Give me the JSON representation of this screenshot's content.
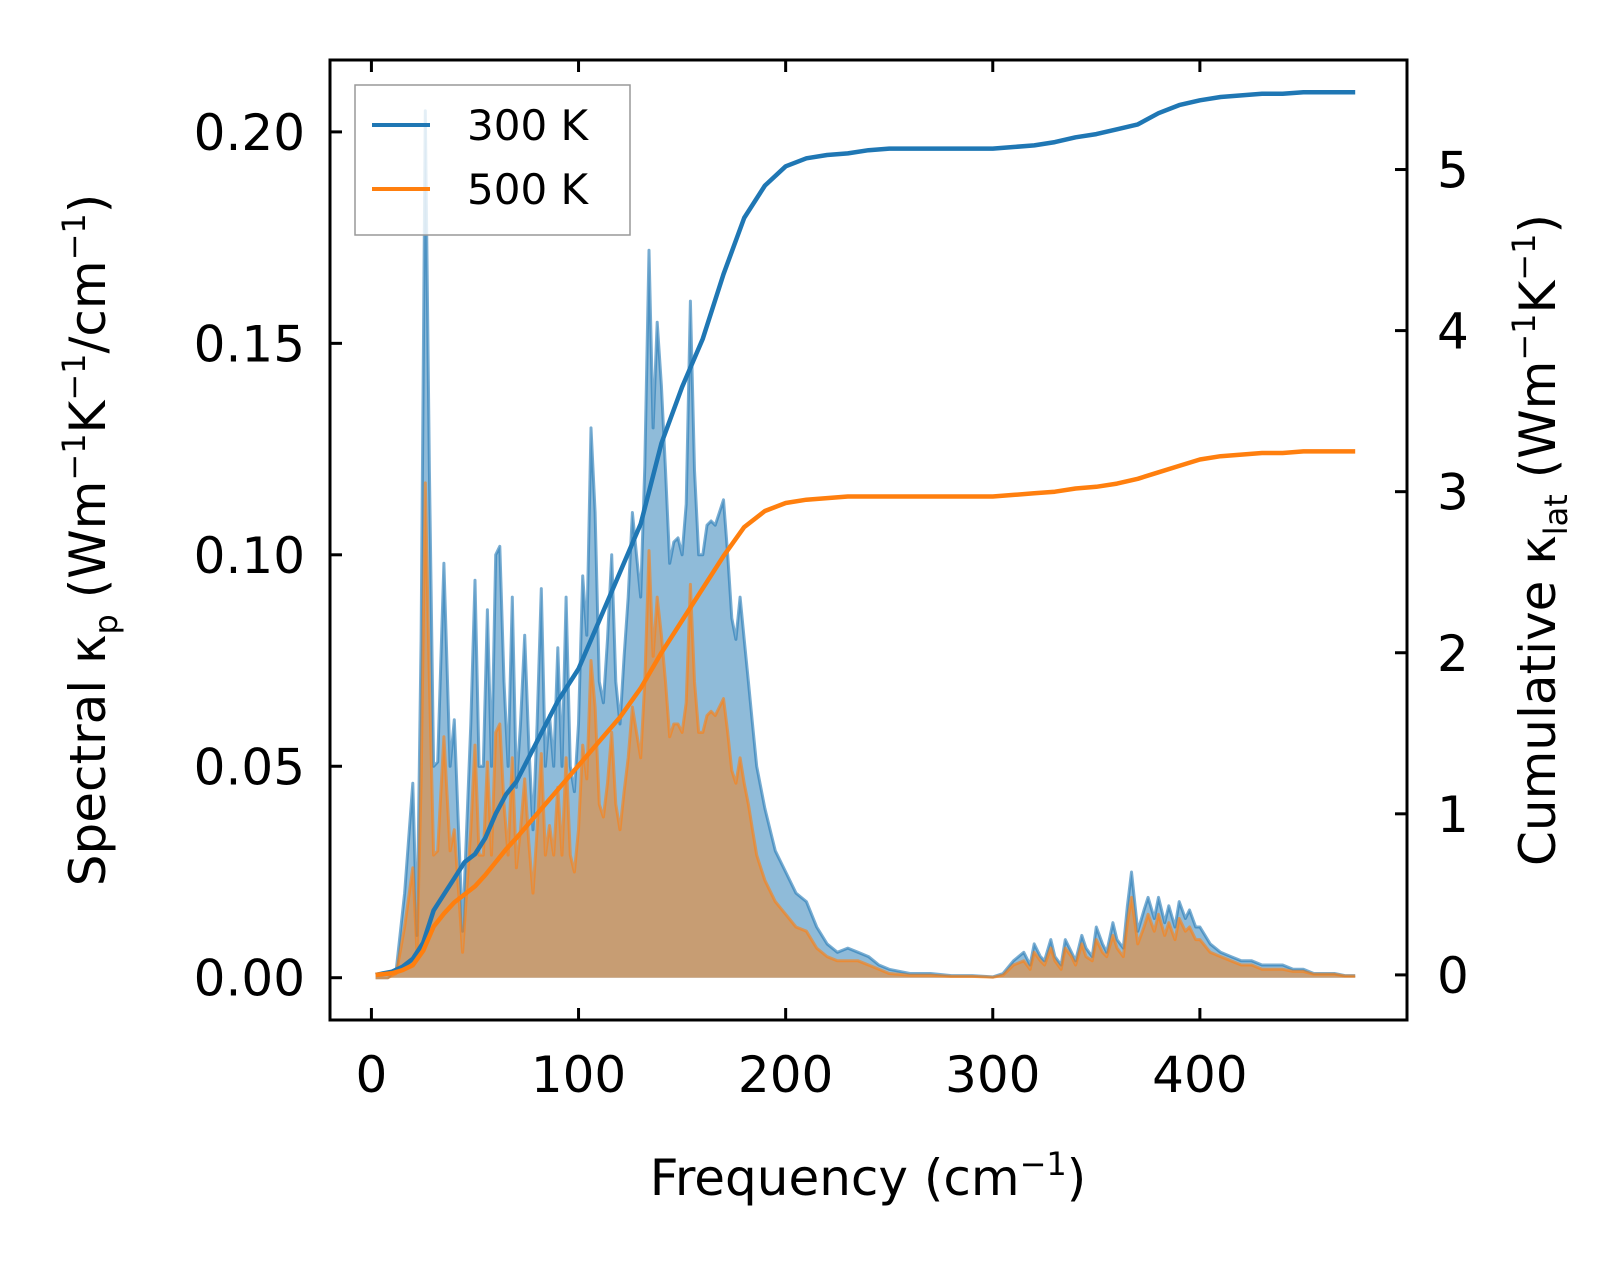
{
  "chart_data": {
    "type": "area",
    "x_label": {
      "text": "Frequency (cm",
      "sup": "−1",
      "close": ")"
    },
    "y_left_label": {
      "text": "Spectral κ",
      "sub": "p",
      "rest": " (Wm",
      "sup1": "−1",
      "mid": "K",
      "sup2": "−1",
      "mid2": "/cm",
      "sup3": "−1",
      "close": ")"
    },
    "y_right_label": {
      "text": "Cumulative κ",
      "sub": "lat",
      "rest": " (Wm",
      "sup1": "−1",
      "mid": "K",
      "sup2": "−1",
      "close": ")"
    },
    "x_range": [
      -20,
      500
    ],
    "y_left_range": [
      -0.01,
      0.217
    ],
    "y_right_range": [
      -0.28,
      5.68
    ],
    "x_ticks": [
      0,
      100,
      200,
      300,
      400
    ],
    "x_tick_labels": [
      "0",
      "100",
      "200",
      "300",
      "400"
    ],
    "y_left_ticks": [
      0.0,
      0.05,
      0.1,
      0.15,
      0.2
    ],
    "y_left_tick_labels": [
      "0.00",
      "0.05",
      "0.10",
      "0.15",
      "0.20"
    ],
    "y_right_ticks": [
      0,
      1,
      2,
      3,
      4,
      5
    ],
    "y_right_tick_labels": [
      "0",
      "1",
      "2",
      "3",
      "4",
      "5"
    ],
    "legend_position": "top-left",
    "legend": [
      {
        "label": "300 K",
        "color": "#1f77b4"
      },
      {
        "label": "500 K",
        "color": "#ff7f0e"
      }
    ],
    "series": [
      {
        "name": "300 K",
        "color": "#1f77b4",
        "fill_color": "#1f77b4",
        "spectral": {
          "x": [
            2,
            8,
            12,
            16,
            20,
            22,
            24,
            26,
            28,
            30,
            32,
            35,
            38,
            40,
            42,
            44,
            48,
            50,
            52,
            54,
            56,
            58,
            60,
            62,
            64,
            66,
            68,
            70,
            72,
            74,
            76,
            78,
            80,
            82,
            84,
            86,
            88,
            90,
            92,
            94,
            96,
            98,
            100,
            102,
            104,
            106,
            108,
            110,
            112,
            114,
            116,
            118,
            120,
            122,
            124,
            126,
            128,
            130,
            132,
            134,
            136,
            138,
            140,
            142,
            144,
            146,
            148,
            150,
            152,
            154,
            156,
            158,
            160,
            162,
            164,
            166,
            168,
            170,
            172,
            174,
            176,
            178,
            180,
            182,
            184,
            186,
            188,
            190,
            195,
            200,
            205,
            210,
            215,
            220,
            225,
            230,
            235,
            240,
            245,
            250,
            260,
            270,
            280,
            290,
            300,
            305,
            310,
            315,
            318,
            320,
            323,
            325,
            328,
            330,
            333,
            335,
            338,
            340,
            343,
            345,
            348,
            350,
            353,
            355,
            358,
            360,
            363,
            365,
            367,
            370,
            373,
            375,
            378,
            380,
            383,
            385,
            388,
            390,
            393,
            395,
            398,
            400,
            405,
            410,
            415,
            420,
            425,
            430,
            435,
            440,
            445,
            450,
            455,
            460,
            465,
            470,
            475
          ],
          "y": [
            0.0,
            0.0,
            0.002,
            0.02,
            0.046,
            0.01,
            0.08,
            0.205,
            0.12,
            0.05,
            0.051,
            0.098,
            0.05,
            0.061,
            0.036,
            0.011,
            0.06,
            0.094,
            0.05,
            0.05,
            0.087,
            0.05,
            0.1,
            0.102,
            0.07,
            0.05,
            0.09,
            0.045,
            0.06,
            0.081,
            0.055,
            0.035,
            0.06,
            0.092,
            0.05,
            0.062,
            0.05,
            0.078,
            0.05,
            0.09,
            0.05,
            0.044,
            0.06,
            0.095,
            0.081,
            0.13,
            0.11,
            0.07,
            0.065,
            0.08,
            0.1,
            0.07,
            0.06,
            0.076,
            0.09,
            0.11,
            0.1,
            0.09,
            0.121,
            0.172,
            0.13,
            0.155,
            0.14,
            0.12,
            0.098,
            0.103,
            0.104,
            0.1,
            0.112,
            0.16,
            0.12,
            0.1,
            0.1,
            0.107,
            0.108,
            0.107,
            0.11,
            0.113,
            0.1,
            0.085,
            0.08,
            0.09,
            0.08,
            0.07,
            0.06,
            0.05,
            0.045,
            0.04,
            0.03,
            0.025,
            0.02,
            0.018,
            0.012,
            0.008,
            0.006,
            0.007,
            0.006,
            0.005,
            0.003,
            0.002,
            0.001,
            0.001,
            0.0005,
            0.0005,
            0.0002,
            0.001,
            0.004,
            0.006,
            0.003,
            0.008,
            0.005,
            0.004,
            0.009,
            0.005,
            0.003,
            0.009,
            0.006,
            0.004,
            0.01,
            0.007,
            0.005,
            0.012,
            0.008,
            0.006,
            0.013,
            0.009,
            0.007,
            0.017,
            0.025,
            0.011,
            0.016,
            0.019,
            0.014,
            0.019,
            0.013,
            0.017,
            0.012,
            0.018,
            0.014,
            0.016,
            0.012,
            0.012,
            0.008,
            0.006,
            0.005,
            0.004,
            0.004,
            0.003,
            0.003,
            0.003,
            0.002,
            0.002,
            0.001,
            0.001,
            0.001,
            0.0005,
            0.0005
          ]
        },
        "cumulative": {
          "x": [
            2,
            10,
            15,
            20,
            25,
            30,
            35,
            40,
            45,
            50,
            55,
            60,
            65,
            70,
            80,
            90,
            100,
            110,
            120,
            130,
            140,
            150,
            160,
            170,
            180,
            190,
            200,
            210,
            220,
            230,
            240,
            250,
            300,
            310,
            320,
            330,
            340,
            350,
            360,
            370,
            380,
            390,
            400,
            410,
            420,
            430,
            440,
            450,
            460,
            475
          ],
          "y": [
            0.0,
            0.02,
            0.05,
            0.1,
            0.2,
            0.4,
            0.5,
            0.6,
            0.7,
            0.75,
            0.85,
            1.0,
            1.12,
            1.2,
            1.45,
            1.7,
            1.9,
            2.2,
            2.5,
            2.8,
            3.3,
            3.65,
            3.95,
            4.35,
            4.7,
            4.9,
            5.02,
            5.07,
            5.09,
            5.1,
            5.12,
            5.13,
            5.13,
            5.14,
            5.15,
            5.17,
            5.2,
            5.22,
            5.25,
            5.28,
            5.35,
            5.4,
            5.43,
            5.45,
            5.46,
            5.47,
            5.47,
            5.48,
            5.48,
            5.48
          ]
        }
      },
      {
        "name": "500 K",
        "color": "#ff7f0e",
        "fill_color": "#ff7f0e",
        "spectral": {
          "x": [
            2,
            8,
            12,
            16,
            20,
            22,
            24,
            26,
            28,
            30,
            32,
            35,
            38,
            40,
            42,
            44,
            48,
            50,
            52,
            54,
            56,
            58,
            60,
            62,
            64,
            66,
            68,
            70,
            72,
            74,
            76,
            78,
            80,
            82,
            84,
            86,
            88,
            90,
            92,
            94,
            96,
            98,
            100,
            102,
            104,
            106,
            108,
            110,
            112,
            114,
            116,
            118,
            120,
            122,
            124,
            126,
            128,
            130,
            132,
            134,
            136,
            138,
            140,
            142,
            144,
            146,
            148,
            150,
            152,
            154,
            156,
            158,
            160,
            162,
            164,
            166,
            168,
            170,
            172,
            174,
            176,
            178,
            180,
            182,
            184,
            186,
            188,
            190,
            195,
            200,
            205,
            210,
            215,
            220,
            225,
            230,
            235,
            240,
            245,
            250,
            260,
            270,
            280,
            290,
            300,
            305,
            310,
            315,
            318,
            320,
            323,
            325,
            328,
            330,
            333,
            335,
            338,
            340,
            343,
            345,
            348,
            350,
            353,
            355,
            358,
            360,
            363,
            365,
            367,
            370,
            373,
            375,
            378,
            380,
            383,
            385,
            388,
            390,
            393,
            395,
            398,
            400,
            405,
            410,
            415,
            420,
            425,
            430,
            435,
            440,
            445,
            450,
            455,
            460,
            465,
            470,
            475
          ],
          "y": [
            0.0,
            0.0,
            0.001,
            0.012,
            0.026,
            0.006,
            0.046,
            0.117,
            0.07,
            0.029,
            0.03,
            0.057,
            0.03,
            0.035,
            0.021,
            0.006,
            0.035,
            0.055,
            0.029,
            0.029,
            0.051,
            0.029,
            0.058,
            0.06,
            0.041,
            0.029,
            0.052,
            0.026,
            0.035,
            0.047,
            0.032,
            0.02,
            0.035,
            0.053,
            0.029,
            0.036,
            0.029,
            0.045,
            0.029,
            0.052,
            0.029,
            0.025,
            0.035,
            0.055,
            0.047,
            0.075,
            0.064,
            0.041,
            0.038,
            0.046,
            0.058,
            0.041,
            0.035,
            0.044,
            0.052,
            0.064,
            0.058,
            0.052,
            0.07,
            0.101,
            0.076,
            0.09,
            0.081,
            0.07,
            0.057,
            0.06,
            0.06,
            0.058,
            0.065,
            0.093,
            0.07,
            0.058,
            0.058,
            0.062,
            0.063,
            0.062,
            0.064,
            0.066,
            0.058,
            0.049,
            0.046,
            0.052,
            0.046,
            0.041,
            0.035,
            0.029,
            0.026,
            0.023,
            0.018,
            0.015,
            0.012,
            0.011,
            0.007,
            0.005,
            0.004,
            0.004,
            0.004,
            0.003,
            0.002,
            0.001,
            0.0006,
            0.0006,
            0.0003,
            0.0003,
            0.0001,
            0.0006,
            0.003,
            0.004,
            0.002,
            0.006,
            0.004,
            0.003,
            0.007,
            0.004,
            0.002,
            0.007,
            0.005,
            0.003,
            0.008,
            0.005,
            0.004,
            0.009,
            0.006,
            0.005,
            0.01,
            0.007,
            0.005,
            0.013,
            0.019,
            0.008,
            0.012,
            0.015,
            0.011,
            0.015,
            0.01,
            0.013,
            0.009,
            0.014,
            0.011,
            0.012,
            0.009,
            0.009,
            0.006,
            0.005,
            0.004,
            0.003,
            0.003,
            0.002,
            0.002,
            0.002,
            0.0015,
            0.0015,
            0.0008,
            0.0008,
            0.0008,
            0.0004,
            0.0004
          ]
        },
        "cumulative": {
          "x": [
            2,
            10,
            15,
            20,
            25,
            30,
            35,
            40,
            45,
            50,
            55,
            60,
            65,
            70,
            80,
            90,
            100,
            110,
            120,
            130,
            140,
            150,
            160,
            170,
            180,
            190,
            200,
            210,
            220,
            230,
            240,
            250,
            300,
            310,
            320,
            330,
            340,
            350,
            360,
            370,
            380,
            390,
            400,
            410,
            420,
            430,
            440,
            450,
            460,
            475
          ],
          "y": [
            0.0,
            0.01,
            0.03,
            0.06,
            0.15,
            0.3,
            0.38,
            0.45,
            0.5,
            0.55,
            0.62,
            0.7,
            0.78,
            0.85,
            1.0,
            1.15,
            1.3,
            1.45,
            1.6,
            1.78,
            2.0,
            2.2,
            2.4,
            2.6,
            2.78,
            2.88,
            2.93,
            2.95,
            2.96,
            2.97,
            2.97,
            2.97,
            2.97,
            2.98,
            2.99,
            3.0,
            3.02,
            3.03,
            3.05,
            3.08,
            3.12,
            3.16,
            3.2,
            3.22,
            3.23,
            3.24,
            3.24,
            3.25,
            3.25,
            3.25
          ]
        }
      }
    ]
  }
}
